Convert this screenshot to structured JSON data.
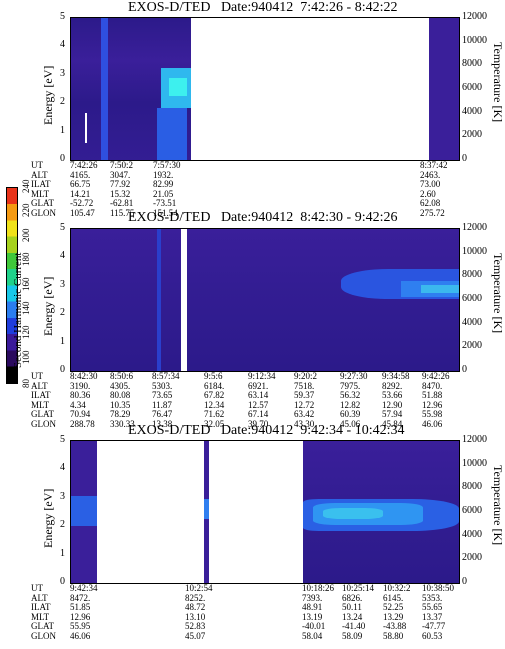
{
  "colorbar": {
    "label": "Second Harmonic Current",
    "ticks": [
      "80",
      "100",
      "120",
      "140",
      "160",
      "180",
      "200",
      "220",
      "240"
    ],
    "colors": [
      "#000000",
      "#2a0a5e",
      "#3a1a9a",
      "#1f3ddc",
      "#2a7df0",
      "#18c8e8",
      "#1fd28a",
      "#3fc83a",
      "#a6d21e",
      "#f0e21a",
      "#f59a12",
      "#e9331a"
    ]
  },
  "panels": [
    {
      "title": "EXOS-D/TED",
      "date": "Date:940412",
      "time_range": "7:42:26 - 8:42:22",
      "ylabel_left": "Energy [eV]",
      "ylabel_right": "Temperature [K]",
      "left_ticks": [
        "5",
        "4",
        "3",
        "2",
        "1",
        "0"
      ],
      "right_ticks": [
        "12000",
        "10000",
        "8000",
        "6000",
        "4000",
        "2000",
        "0"
      ],
      "eph_labels": [
        "UT",
        "ALT",
        "ILAT",
        "MLT",
        "GLAT",
        "GLON"
      ],
      "eph_columns": [
        [
          "7:42:26",
          "4165.",
          "66.75",
          "14.21",
          "-52.72",
          "105.47"
        ],
        [
          "7:50:2",
          "3047.",
          "77.92",
          "15.32",
          "-62.81",
          "115.75"
        ],
        [
          "7:57:30",
          "1932.",
          "82.99",
          "21.05",
          "-73.51",
          "151.54"
        ],
        [
          "8:37:42",
          "2463.",
          "73.00",
          "2.60",
          "62.08",
          "275.72"
        ]
      ]
    },
    {
      "title": "EXOS-D/TED",
      "date": "Date:940412",
      "time_range": "8:42:30 - 9:42:26",
      "ylabel_left": "Energy [eV]",
      "ylabel_right": "Temperature [K]",
      "left_ticks": [
        "5",
        "4",
        "3",
        "2",
        "1",
        "0"
      ],
      "right_ticks": [
        "12000",
        "10000",
        "8000",
        "6000",
        "4000",
        "2000",
        "0"
      ],
      "eph_labels": [
        "UT",
        "ALT",
        "ILAT",
        "MLT",
        "GLAT",
        "GLON"
      ],
      "eph_columns": [
        [
          "8:42:30",
          "3190.",
          "80.36",
          "4.34",
          "70.94",
          "288.78"
        ],
        [
          "8:50:6",
          "4305.",
          "80.08",
          "10.35",
          "78.29",
          "330.33"
        ],
        [
          "8:57:34",
          "5303.",
          "73.65",
          "11.87",
          "76.47",
          "13.38"
        ],
        [
          "9:5:6",
          "6184.",
          "67.82",
          "12.34",
          "71.62",
          "32.05"
        ],
        [
          "9:12:34",
          "6921.",
          "63.14",
          "12.57",
          "67.14",
          "39.70"
        ],
        [
          "9:20:2",
          "7518.",
          "59.37",
          "12.72",
          "63.42",
          "43.30"
        ],
        [
          "9:27:30",
          "7975.",
          "56.32",
          "12.82",
          "60.39",
          "45.06"
        ],
        [
          "9:34:58",
          "8292.",
          "53.66",
          "12.90",
          "57.94",
          "45.84"
        ],
        [
          "9:42:26",
          "8470.",
          "51.88",
          "12.96",
          "55.98",
          "46.06"
        ]
      ]
    },
    {
      "title": "EXOS-D/TED",
      "date": "Date:940412",
      "time_range": "9:42:34 - 10:42:34",
      "ylabel_left": "Energy [eV]",
      "ylabel_right": "Temperature [K]",
      "left_ticks": [
        "5",
        "4",
        "3",
        "2",
        "1",
        "0"
      ],
      "right_ticks": [
        "12000",
        "10000",
        "8000",
        "6000",
        "4000",
        "2000",
        "0"
      ],
      "eph_labels": [
        "UT",
        "ALT",
        "ILAT",
        "MLT",
        "GLAT",
        "GLON"
      ],
      "eph_columns": [
        [
          "9:42:34",
          "8472.",
          "51.85",
          "12.96",
          "55.95",
          "46.06"
        ],
        [
          "10:2:54",
          "8252.",
          "48.72",
          "13.10",
          "52.83",
          "45.07"
        ],
        [
          "10:18:26",
          "7393.",
          "48.91",
          "13.19",
          "-40.01",
          "58.04"
        ],
        [
          "10:25:14",
          "6826.",
          "50.11",
          "13.24",
          "-41.40",
          "58.09"
        ],
        [
          "10:32:2",
          "6145.",
          "52.25",
          "13.29",
          "-43.88",
          "58.80"
        ],
        [
          "10:38:50",
          "5353.",
          "55.65",
          "13.37",
          "-47.77",
          "60.53"
        ]
      ]
    }
  ],
  "chart_data": [
    {
      "type": "heatmap",
      "title": "EXOS-D/TED Date:940412 7:42:26 - 8:42:22",
      "xlabel": "UT",
      "ylabel": "Energy [eV]",
      "ylabel_right": "Temperature [K]",
      "ylim": [
        0,
        5
      ],
      "ylim_right": [
        0,
        12000
      ],
      "x_ticks": [
        "7:42:26",
        "7:50:2",
        "7:57:30",
        "8:37:42"
      ],
      "colorbar_label": "Second Harmonic Current",
      "colorbar_range": [
        80,
        240
      ]
    },
    {
      "type": "heatmap",
      "title": "EXOS-D/TED Date:940412 8:42:30 - 9:42:26",
      "xlabel": "UT",
      "ylabel": "Energy [eV]",
      "ylabel_right": "Temperature [K]",
      "ylim": [
        0,
        5
      ],
      "ylim_right": [
        0,
        12000
      ],
      "x_ticks": [
        "8:42:30",
        "8:50:6",
        "8:57:34",
        "9:5:6",
        "9:12:34",
        "9:20:2",
        "9:27:30",
        "9:34:58",
        "9:42:26"
      ],
      "colorbar_label": "Second Harmonic Current",
      "colorbar_range": [
        80,
        240
      ]
    },
    {
      "type": "heatmap",
      "title": "EXOS-D/TED Date:940412 9:42:34 - 10:42:34",
      "xlabel": "UT",
      "ylabel": "Energy [eV]",
      "ylabel_right": "Temperature [K]",
      "ylim": [
        0,
        5
      ],
      "ylim_right": [
        0,
        12000
      ],
      "x_ticks": [
        "9:42:34",
        "10:2:54",
        "10:18:26",
        "10:25:14",
        "10:32:2",
        "10:38:50"
      ],
      "colorbar_label": "Second Harmonic Current",
      "colorbar_range": [
        80,
        240
      ]
    }
  ]
}
